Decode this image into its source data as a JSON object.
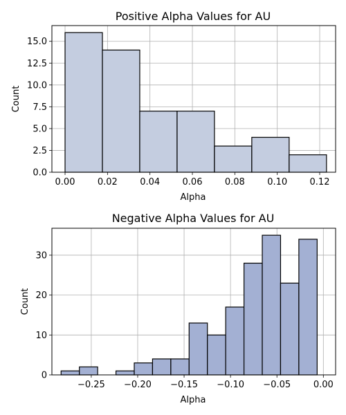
{
  "chart_data": [
    {
      "type": "bar",
      "title": "Positive Alpha Values for AU",
      "xlabel": "Alpha",
      "ylabel": "Count",
      "bin_edges": [
        0.0,
        0.0176,
        0.0352,
        0.0528,
        0.0704,
        0.088,
        0.1056,
        0.1232
      ],
      "values": [
        16,
        14,
        7,
        7,
        3,
        4,
        2
      ],
      "xlim": [
        -0.0062,
        0.1275
      ],
      "ylim": [
        0,
        16.8
      ],
      "xticks": [
        0.0,
        0.02,
        0.04,
        0.06,
        0.08,
        0.1,
        0.12
      ],
      "xtick_labels": [
        "0.00",
        "0.02",
        "0.04",
        "0.06",
        "0.08",
        "0.10",
        "0.12"
      ],
      "yticks": [
        0,
        2.5,
        5,
        7.5,
        10,
        12.5,
        15
      ],
      "ytick_labels": [
        "0.0",
        "2.5",
        "5.0",
        "7.5",
        "10.0",
        "12.5",
        "15.0"
      ],
      "grid": true,
      "bar_color": "#c4cde0"
    },
    {
      "type": "bar",
      "title": "Negative Alpha Values for AU",
      "xlabel": "Alpha",
      "ylabel": "Count",
      "bin_edges": [
        -0.2825,
        -0.2628,
        -0.2431,
        -0.2234,
        -0.2037,
        -0.184,
        -0.1643,
        -0.1446,
        -0.1249,
        -0.1052,
        -0.0855,
        -0.0658,
        -0.0461,
        -0.0264,
        -0.0067
      ],
      "values": [
        1,
        2,
        0,
        1,
        3,
        4,
        4,
        13,
        10,
        17,
        28,
        35,
        23,
        34
      ],
      "xlim": [
        -0.2924,
        0.0132
      ],
      "ylim": [
        0,
        36.75
      ],
      "xticks": [
        -0.25,
        -0.2,
        -0.15,
        -0.1,
        -0.05,
        0.0
      ],
      "xtick_labels": [
        "−0.25",
        "−0.20",
        "−0.15",
        "−0.10",
        "−0.05",
        "0.00"
      ],
      "yticks": [
        0,
        10,
        20,
        30
      ],
      "ytick_labels": [
        "0",
        "10",
        "20",
        "30"
      ],
      "grid": true,
      "bar_color": "#a3b0d3"
    }
  ]
}
